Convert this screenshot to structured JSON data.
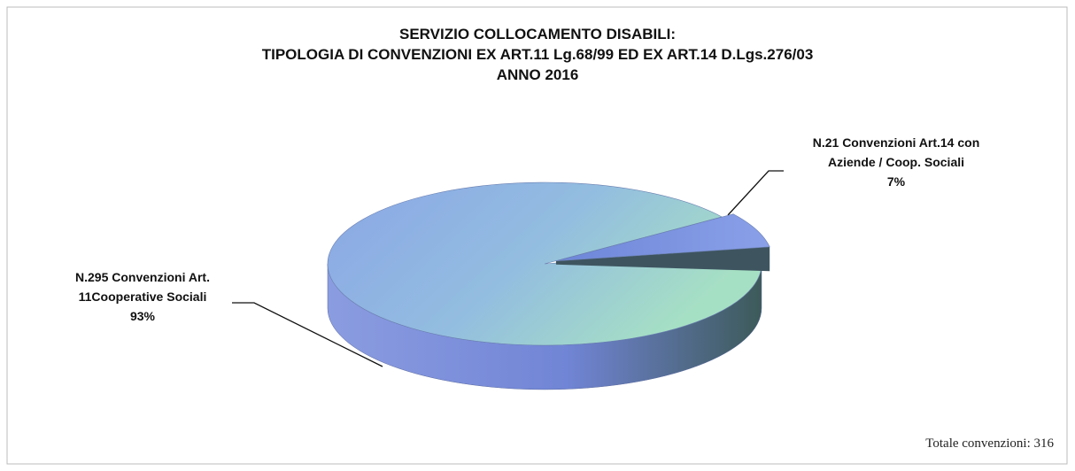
{
  "chart_data": {
    "type": "pie",
    "title": [
      "SERVIZIO COLLOCAMENTO DISABILI:",
      "TIPOLOGIA DI CONVENZIONI EX ART.11 Lg.68/99 ED EX ART.14 D.Lgs.276/03",
      "ANNO 2016"
    ],
    "categories": [
      "N.295 Convenzioni Art. 11Cooperative Sociali",
      "N.21 Convenzioni Art.14 con Aziende / Coop. Sociali"
    ],
    "values": [
      93,
      7
    ],
    "value_labels": [
      "93%",
      "7%"
    ],
    "colors": [
      "#8fb4e6",
      "#7f8fd8"
    ],
    "note": "Totale convenzioni: 316"
  }
}
